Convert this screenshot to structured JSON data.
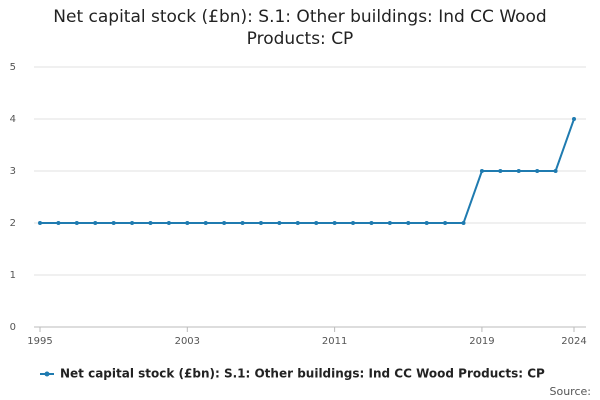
{
  "chart_data": {
    "type": "line",
    "title": "Net capital stock (£bn): S.1: Other buildings: Ind CC Wood Products: CP",
    "x": [
      1995,
      1996,
      1997,
      1998,
      1999,
      2000,
      2001,
      2002,
      2003,
      2004,
      2005,
      2006,
      2007,
      2008,
      2009,
      2010,
      2011,
      2012,
      2013,
      2014,
      2015,
      2016,
      2017,
      2018,
      2019,
      2020,
      2021,
      2022,
      2023,
      2024
    ],
    "series": [
      {
        "name": "Net capital stock (£bn): S.1: Other buildings: Ind CC Wood Products: CP",
        "color": "#1f7bb0",
        "values": [
          2,
          2,
          2,
          2,
          2,
          2,
          2,
          2,
          2,
          2,
          2,
          2,
          2,
          2,
          2,
          2,
          2,
          2,
          2,
          2,
          2,
          2,
          2,
          2,
          3,
          3,
          3,
          3,
          3,
          4
        ]
      }
    ],
    "xlim": [
      1995,
      2024
    ],
    "xticks": [
      1995,
      2003,
      2011,
      2019,
      2024
    ],
    "ylim": [
      0,
      5
    ],
    "yticks": [
      0,
      1,
      2,
      3,
      4,
      5
    ],
    "grid": true,
    "legend": "bottom",
    "source": "Source:"
  }
}
